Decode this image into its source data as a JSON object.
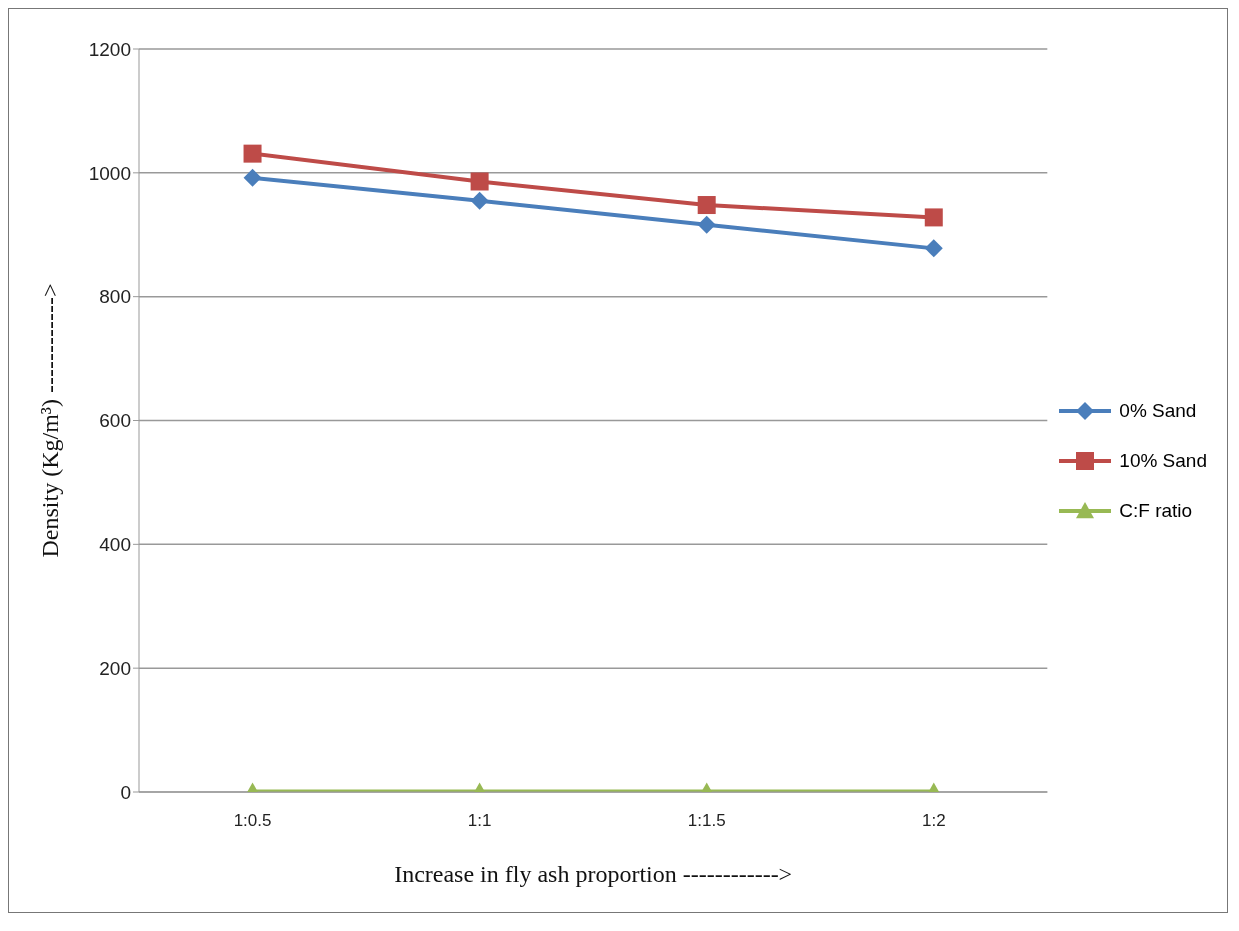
{
  "chart_data": {
    "type": "line",
    "xlabel": "Increase in fly ash proportion ------------>",
    "ylabel": "Density (Kg/m³) ------------>",
    "categories": [
      "1:0.5",
      "1:1",
      "1:1.5",
      "1:2"
    ],
    "ylim": [
      0,
      1200
    ],
    "yticks": [
      0,
      200,
      400,
      600,
      800,
      1000,
      1200
    ],
    "grid": "y",
    "legend": "right",
    "series": [
      {
        "name": "0% Sand",
        "color": "#4a7ebb",
        "marker": "diamond",
        "values": [
          992,
          955,
          916,
          878
        ]
      },
      {
        "name": "10% Sand",
        "color": "#be4b48",
        "marker": "square",
        "values": [
          1031,
          986,
          948,
          928
        ]
      },
      {
        "name": "C:F ratio",
        "color": "#98b954",
        "marker": "triangle",
        "values": [
          1,
          1,
          1,
          1
        ]
      }
    ]
  }
}
